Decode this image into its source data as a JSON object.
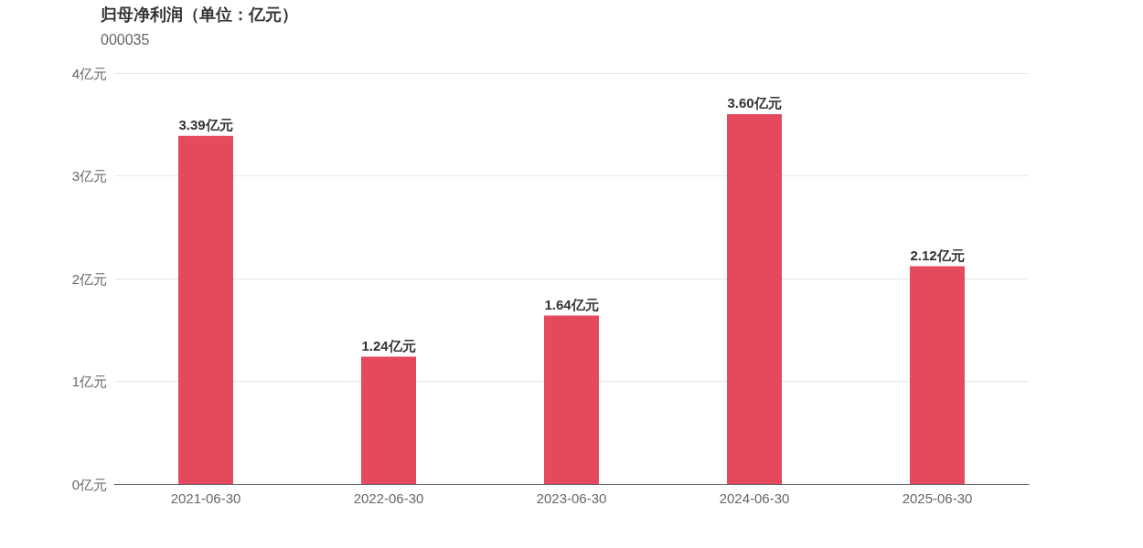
{
  "chart_data": {
    "type": "bar",
    "title": "归母净利润（单位：亿元）",
    "subtitle": "000035",
    "categories": [
      "2021-06-30",
      "2022-06-30",
      "2023-06-30",
      "2024-06-30",
      "2025-06-30"
    ],
    "values": [
      3.39,
      1.24,
      1.64,
      3.6,
      2.12
    ],
    "value_labels": [
      "3.39亿元",
      "1.24亿元",
      "1.64亿元",
      "3.60亿元",
      "2.12亿元"
    ],
    "color": "#e5495d",
    "ylim": [
      0,
      4
    ],
    "yticks": [
      {
        "value": 0,
        "label": "0亿元"
      },
      {
        "value": 1,
        "label": "1亿元"
      },
      {
        "value": 2,
        "label": "2亿元"
      },
      {
        "value": 3,
        "label": "3亿元"
      },
      {
        "value": 4,
        "label": "4亿元"
      }
    ],
    "grid": "y"
  }
}
